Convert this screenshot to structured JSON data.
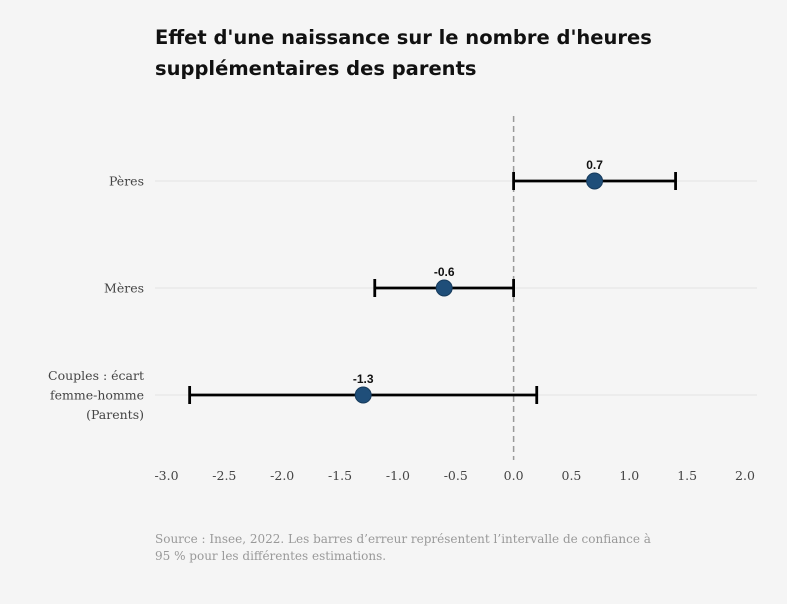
{
  "title": "Effet d'une naissance sur le nombre d'heures supplémentaires des parents",
  "source": "Source : Insee, 2022. Les barres d’erreur représentent l’intervalle de confiance à 95 % pour les différentes estimations.",
  "chart_data": {
    "type": "scatter",
    "title": "Effet d'une naissance sur le nombre d'heures supplémentaires des parents",
    "xlabel": "",
    "ylabel": "",
    "xlim": [
      -3.0,
      2.0
    ],
    "xticks": [
      -3.0,
      -2.5,
      -2.0,
      -1.5,
      -1.0,
      -0.5,
      0.0,
      0.5,
      1.0,
      1.5,
      2.0
    ],
    "xtick_labels": [
      "-3.0",
      "-2.5",
      "-2.0",
      "-1.5",
      "-1.0",
      "-0.5",
      "0.0",
      "0.5",
      "1.0",
      "1.5",
      "2.0"
    ],
    "reference_line_x": 0.0,
    "grid": "horizontal",
    "marker_color": "#1f4e79",
    "points": [
      {
        "category_lines": [
          "Pères"
        ],
        "value": 0.7,
        "label": "0.7",
        "ci": [
          0.0,
          1.4
        ]
      },
      {
        "category_lines": [
          "Mères"
        ],
        "value": -0.6,
        "label": "-0.6",
        "ci": [
          -1.2,
          0.0
        ]
      },
      {
        "category_lines": [
          "Couples : écart",
          "femme-homme",
          "(Parents)"
        ],
        "value": -1.3,
        "label": "-1.3",
        "ci": [
          -2.8,
          0.2
        ]
      }
    ]
  }
}
